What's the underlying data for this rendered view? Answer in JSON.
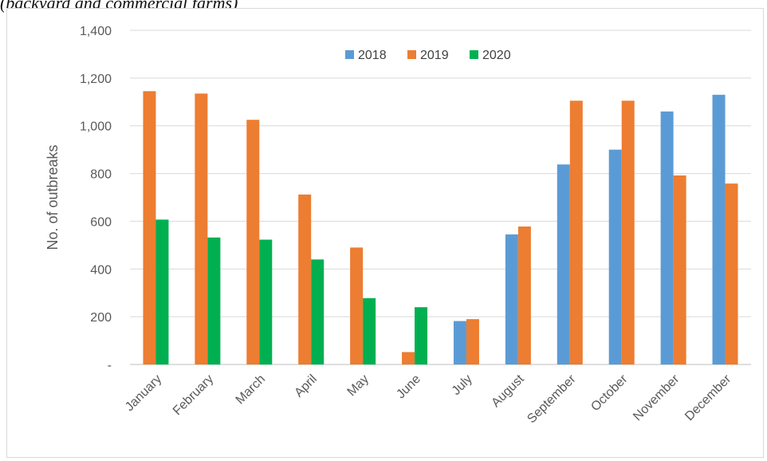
{
  "caption": "(backyard and commercial farms)",
  "chart_data": {
    "type": "bar",
    "title": "",
    "xlabel": "",
    "ylabel": "No. of outbreaks",
    "ylim": [
      0,
      1400
    ],
    "yticks": [
      0,
      200,
      400,
      600,
      800,
      1000,
      1200,
      1400
    ],
    "ytick_labels": [
      "-",
      "200",
      "400",
      "600",
      "800",
      "1,000",
      "1,200",
      "1,400"
    ],
    "grid": true,
    "legend_position": "top-center",
    "categories": [
      "January",
      "February",
      "March",
      "April",
      "May",
      "June",
      "July",
      "August",
      "September",
      "October",
      "November",
      "December"
    ],
    "series": [
      {
        "name": "2018",
        "color": "#5B9BD5",
        "values": [
          null,
          null,
          null,
          null,
          null,
          null,
          182,
          545,
          838,
          900,
          1060,
          1130
        ]
      },
      {
        "name": "2019",
        "color": "#ED7D31",
        "values": [
          1145,
          1135,
          1025,
          712,
          490,
          52,
          190,
          578,
          1105,
          1105,
          792,
          758
        ]
      },
      {
        "name": "2020",
        "color": "#00B050",
        "values": [
          607,
          532,
          523,
          440,
          278,
          240,
          null,
          null,
          null,
          null,
          null,
          null
        ]
      }
    ]
  }
}
